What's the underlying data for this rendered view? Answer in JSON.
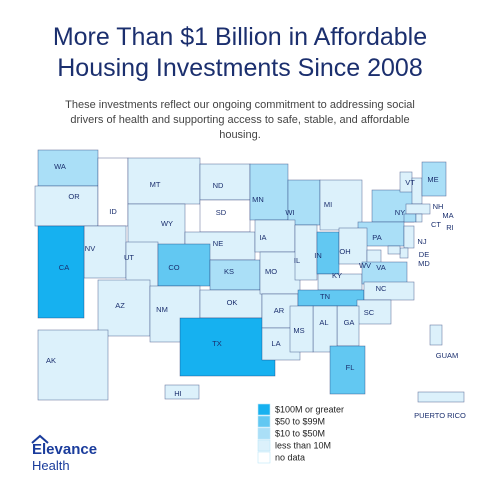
{
  "title": "More Than $1 Billion in Affordable Housing Investments Since 2008",
  "subtitle": "These investments reflect our ongoing commitment to addressing social drivers of health and supporting access to safe, stable, and affordable housing.",
  "legend": [
    {
      "label": "$100M or greater",
      "color": "#16b1f0"
    },
    {
      "label": "$50 to $99M",
      "color": "#62c8f2"
    },
    {
      "label": "$10 to $50M",
      "color": "#aadff7"
    },
    {
      "label": "less than 10M",
      "color": "#dcf1fb"
    },
    {
      "label": "no data",
      "color": "#ffffff"
    }
  ],
  "states": [
    {
      "label": "WA",
      "level": 2
    },
    {
      "label": "OR",
      "level": 3
    },
    {
      "label": "ID",
      "level": 4
    },
    {
      "label": "MT",
      "level": 3
    },
    {
      "label": "WY",
      "level": 3
    },
    {
      "label": "ND",
      "level": 3
    },
    {
      "label": "SD",
      "level": 4
    },
    {
      "label": "NE",
      "level": 3
    },
    {
      "label": "MN",
      "level": 2
    },
    {
      "label": "WI",
      "level": 2
    },
    {
      "label": "MI",
      "level": 3
    },
    {
      "label": "NY",
      "level": 2
    },
    {
      "label": "VT",
      "level": 3
    },
    {
      "label": "NH",
      "level": 3
    },
    {
      "label": "ME",
      "level": 2
    },
    {
      "label": "MA",
      "level": 3
    },
    {
      "label": "CT",
      "level": 2
    },
    {
      "label": "RI",
      "level": 3
    },
    {
      "label": "PA",
      "level": 2
    },
    {
      "label": "NJ",
      "level": 3
    },
    {
      "label": "DE",
      "level": 3
    },
    {
      "label": "MD",
      "level": 3
    },
    {
      "label": "NV",
      "level": 3
    },
    {
      "label": "CA",
      "level": 0
    },
    {
      "label": "UT",
      "level": 3
    },
    {
      "label": "AZ",
      "level": 3
    },
    {
      "label": "CO",
      "level": 1
    },
    {
      "label": "NM",
      "level": 3
    },
    {
      "label": "KS",
      "level": 2
    },
    {
      "label": "OK",
      "level": 3
    },
    {
      "label": "TX",
      "level": 0
    },
    {
      "label": "IA",
      "level": 3
    },
    {
      "label": "MO",
      "level": 3
    },
    {
      "label": "AR",
      "level": 3
    },
    {
      "label": "LA",
      "level": 3
    },
    {
      "label": "IL",
      "level": 3
    },
    {
      "label": "IN",
      "level": 1
    },
    {
      "label": "OH",
      "level": 3
    },
    {
      "label": "KY",
      "level": 3
    },
    {
      "label": "WV",
      "level": 3
    },
    {
      "label": "VA",
      "level": 2
    },
    {
      "label": "TN",
      "level": 1
    },
    {
      "label": "NC",
      "level": 3
    },
    {
      "label": "SC",
      "level": 3
    },
    {
      "label": "GA",
      "level": 3
    },
    {
      "label": "AL",
      "level": 3
    },
    {
      "label": "MS",
      "level": 3
    },
    {
      "label": "FL",
      "level": 1
    },
    {
      "label": "AK",
      "level": 3
    },
    {
      "label": "HI",
      "level": 3
    },
    {
      "label": "GUAM",
      "level": 3
    },
    {
      "label": "PUERTO RICO",
      "level": 3
    }
  ],
  "logo": {
    "line1": "Elevance",
    "line2": "Health"
  }
}
